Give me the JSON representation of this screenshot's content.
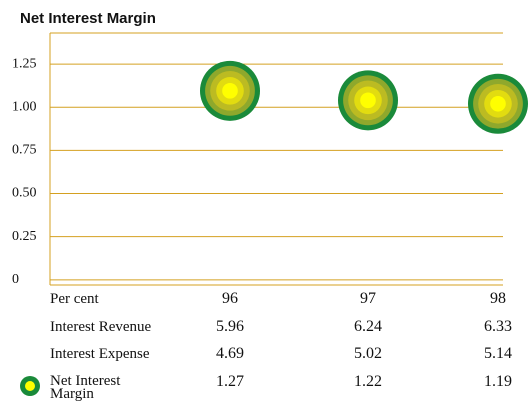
{
  "chart_data": {
    "type": "scatter",
    "title": "Net Interest Margin",
    "categories": [
      "96",
      "97",
      "98"
    ],
    "series": [
      {
        "name": "Net Interest Margin",
        "color": "#1a8a3a",
        "values": [
          1.095,
          1.04,
          1.02
        ]
      }
    ],
    "ylim": [
      -0.03,
      1.43
    ],
    "yticks": [
      0,
      0.25,
      {
        "value": 0.5,
        "label": "0.50"
      },
      0.75,
      {
        "value": 1,
        "label": "1.00"
      },
      1.25
    ],
    "grid": true,
    "grid_color": "#d4a020"
  },
  "table": {
    "header": "Per cent",
    "rows": [
      {
        "label": "Interest Revenue",
        "values": [
          "5.96",
          "6.24",
          "6.33"
        ]
      },
      {
        "label": "Interest Expense",
        "values": [
          "4.69",
          "5.02",
          "5.14"
        ]
      },
      {
        "values": [
          "1.27",
          "1.22",
          "1.19"
        ]
      }
    ]
  }
}
